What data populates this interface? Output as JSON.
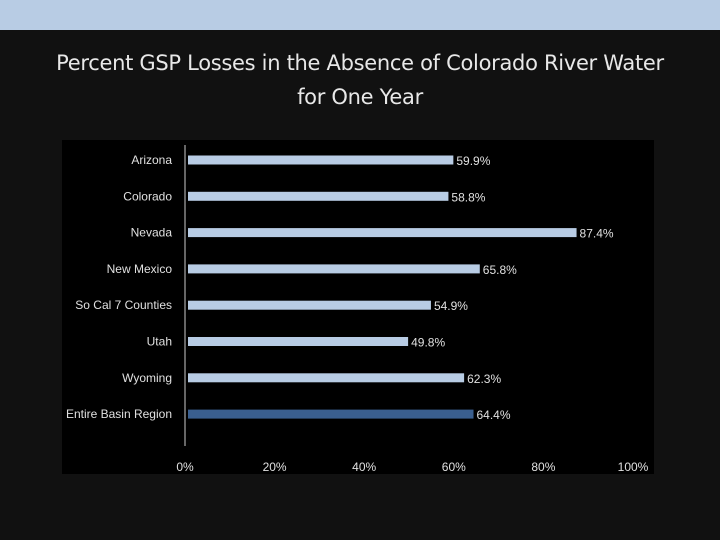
{
  "title": {
    "line1": "Percent GSP Losses in the Absence of Colorado River Water",
    "line2": "for One Year"
  },
  "colors": {
    "bar": "#b8cce4",
    "highlight_bar": "#3a5f8f",
    "background": "#111111",
    "plot_background": "#000000",
    "top_band": "#b8cce4",
    "text": "#e0e0e0"
  },
  "chart_data": {
    "type": "bar",
    "orientation": "horizontal",
    "categories": [
      "Arizona",
      "Colorado",
      "Nevada",
      "New Mexico",
      "So Cal 7 Counties",
      "Utah",
      "Wyoming",
      "Entire Basin Region"
    ],
    "values": [
      59.9,
      58.8,
      87.4,
      65.8,
      54.9,
      49.8,
      62.3,
      64.4
    ],
    "value_labels": [
      "59.9%",
      "58.8%",
      "87.4%",
      "65.8%",
      "54.9%",
      "49.8%",
      "62.3%",
      "64.4%"
    ],
    "highlight_category": "Entire Basin Region",
    "xlim": [
      0,
      100
    ],
    "xticks": [
      0,
      20,
      40,
      60,
      80,
      100
    ],
    "xtick_labels": [
      "0%",
      "20%",
      "40%",
      "60%",
      "80%",
      "100%"
    ],
    "grid": false,
    "legend": "none"
  }
}
